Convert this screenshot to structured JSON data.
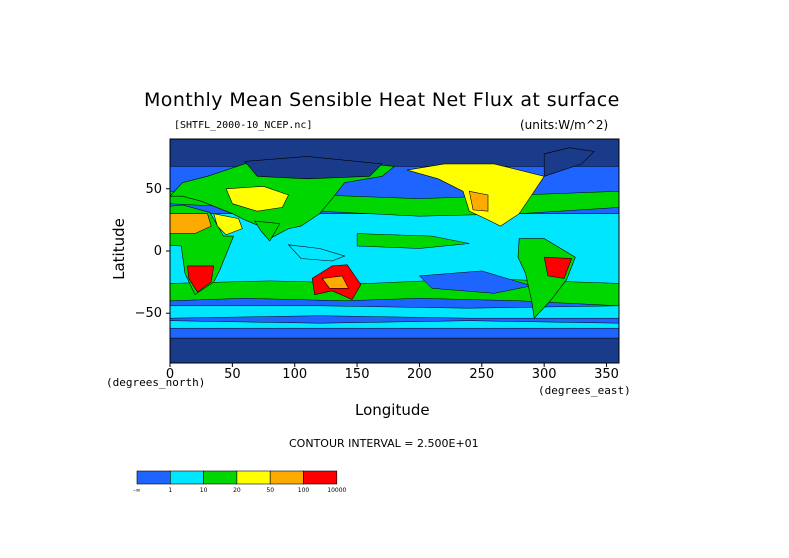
{
  "chart_data": {
    "type": "heatmap",
    "title": "Monthly Mean Sensible Heat Net Flux at surface",
    "subtitle_left": "[SHTFL_2000-10_NCEP.nc]",
    "subtitle_right": "(units:W/m^2)",
    "xlabel": "Longitude",
    "ylabel": "Latitude",
    "x_unit": "(degrees_east)",
    "y_unit": "(degrees_north)",
    "xlim": [
      0,
      360
    ],
    "ylim": [
      -90,
      90
    ],
    "xticks": [
      0,
      50,
      100,
      150,
      200,
      250,
      300,
      350
    ],
    "yticks": [
      50,
      0,
      -50
    ],
    "ytick_labels": [
      "50",
      "0",
      "−50"
    ],
    "contour_interval": "CONTOUR INTERVAL = 2.500E+01",
    "legend": {
      "placement": "bottom-left",
      "colors": [
        "#1e64ff",
        "#00e6ff",
        "#00d700",
        "#ffff00",
        "#ffaa00",
        "#ff0000"
      ],
      "labels": [
        "-∞",
        "1",
        "10",
        "20",
        "50",
        "100",
        "10000"
      ]
    },
    "colors": {
      "ocean_low": "#1e64ff",
      "ocean_mid": "#00e6ff",
      "land_mid": "#00d700",
      "warm": "#ffff00",
      "hot": "#ffaa00",
      "very_hot": "#ff0000",
      "polar": "#1a3a8a"
    }
  }
}
